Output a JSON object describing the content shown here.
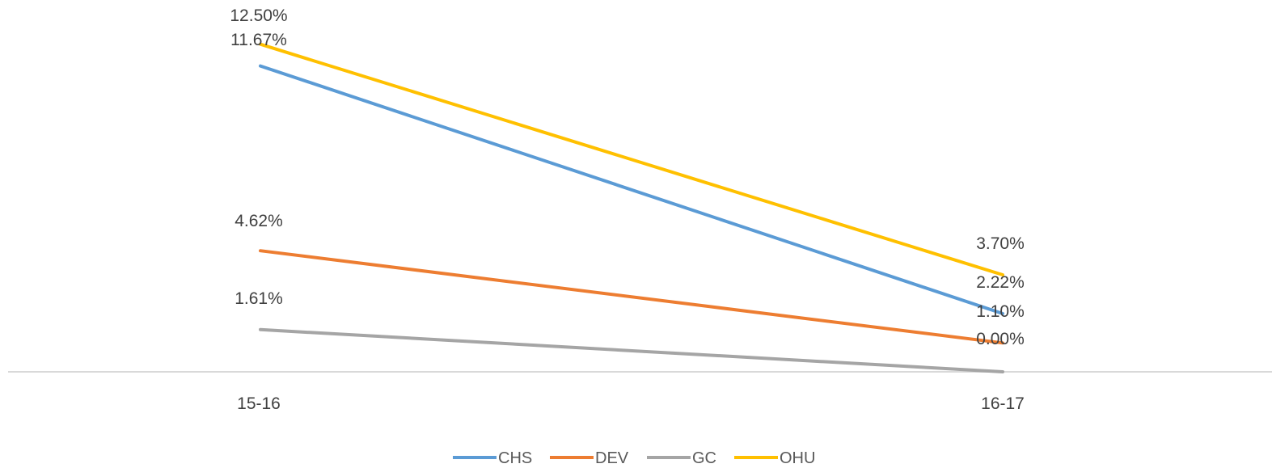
{
  "chart_data": {
    "type": "line",
    "categories": [
      "15-16",
      "16-17"
    ],
    "series": [
      {
        "name": "CHS",
        "color": "#5B9BD5",
        "values": [
          11.67,
          2.22
        ],
        "labels": [
          "11.67%",
          "2.22%"
        ]
      },
      {
        "name": "DEV",
        "color": "#ED7D31",
        "values": [
          4.62,
          1.1
        ],
        "labels": [
          "4.62%",
          "1.10%"
        ]
      },
      {
        "name": "GC",
        "color": "#A5A5A5",
        "values": [
          1.61,
          0.0
        ],
        "labels": [
          "1.61%",
          "0.00%"
        ]
      },
      {
        "name": "OHU",
        "color": "#FFC000",
        "values": [
          12.5,
          3.7
        ],
        "labels": [
          "12.50%",
          "3.70%"
        ]
      }
    ],
    "ylim": [
      0,
      13.2
    ],
    "grid": false,
    "legend_position": "bottom"
  }
}
